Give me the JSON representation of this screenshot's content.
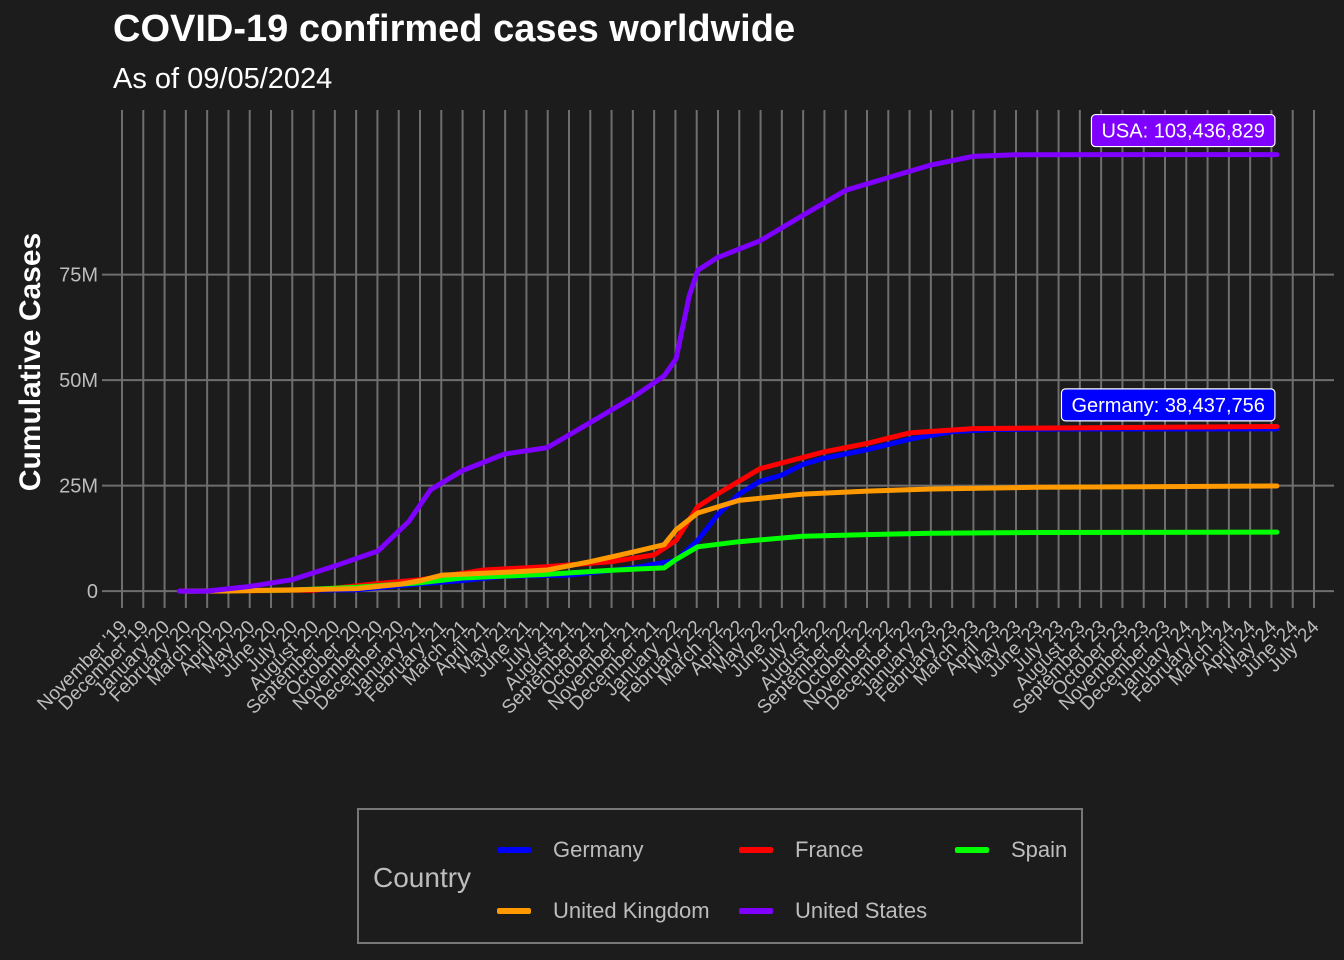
{
  "title": "COVID-19 confirmed cases worldwide",
  "subtitle": "As of 09/05/2024",
  "legend_title": "Country",
  "chart_data": {
    "type": "line",
    "title": "COVID-19 confirmed cases worldwide",
    "subtitle": "As of 09/05/2024",
    "xlabel": "",
    "ylabel": "Cumulative Cases",
    "x_range": [
      "2019-11-01",
      "2024-07-01"
    ],
    "ylim": [
      -4000000,
      114000000
    ],
    "y_ticks": [
      {
        "value": 0,
        "label": "0"
      },
      {
        "value": 25000000,
        "label": "25M"
      },
      {
        "value": 50000000,
        "label": "50M"
      },
      {
        "value": 75000000,
        "label": "75M"
      }
    ],
    "x_tick_labels": [
      "November '19",
      "December '19",
      "January '20",
      "February '20",
      "March '20",
      "April '20",
      "May '20",
      "June '20",
      "July '20",
      "August '20",
      "September '20",
      "October '20",
      "November '20",
      "December '20",
      "January '21",
      "February '21",
      "March '21",
      "April '21",
      "May '21",
      "June '21",
      "July '21",
      "August '21",
      "September '21",
      "October '21",
      "November '21",
      "December '21",
      "January '22",
      "February '22",
      "March '22",
      "April '22",
      "May '22",
      "June '22",
      "July '22",
      "August '22",
      "September '22",
      "October '22",
      "November '22",
      "December '22",
      "January '23",
      "February '23",
      "March '23",
      "April '23",
      "May '23",
      "June '23",
      "July '23",
      "August '23",
      "September '23",
      "October '23",
      "November '23",
      "December '23",
      "January '24",
      "February '24",
      "March '24",
      "April '24",
      "May '24",
      "June '24",
      "July '24"
    ],
    "grid": true,
    "legend_position": "bottom",
    "series": [
      {
        "name": "Germany",
        "color": "#0000ff",
        "points": [
          [
            "2020-01-27",
            0
          ],
          [
            "2020-03-01",
            100
          ],
          [
            "2020-06-01",
            190000
          ],
          [
            "2020-10-01",
            300000
          ],
          [
            "2021-01-01",
            1750000
          ],
          [
            "2021-03-01",
            2500000
          ],
          [
            "2021-05-01",
            3500000
          ],
          [
            "2021-08-01",
            3800000
          ],
          [
            "2021-11-01",
            5500000
          ],
          [
            "2022-01-01",
            7300000
          ],
          [
            "2022-02-01",
            12000000
          ],
          [
            "2022-03-01",
            18000000
          ],
          [
            "2022-04-01",
            23000000
          ],
          [
            "2022-05-01",
            26000000
          ],
          [
            "2022-06-01",
            27500000
          ],
          [
            "2022-07-01",
            30000000
          ],
          [
            "2022-08-01",
            31500000
          ],
          [
            "2022-10-01",
            33500000
          ],
          [
            "2022-12-01",
            36000000
          ],
          [
            "2023-02-01",
            37800000
          ],
          [
            "2023-04-01",
            38300000
          ],
          [
            "2023-07-01",
            38400000
          ],
          [
            "2024-05-09",
            38437756
          ]
        ]
      },
      {
        "name": "France",
        "color": "#ff0000",
        "points": [
          [
            "2020-01-24",
            0
          ],
          [
            "2020-04-01",
            50000
          ],
          [
            "2020-08-01",
            200000
          ],
          [
            "2020-11-01",
            1800000
          ],
          [
            "2021-01-01",
            2700000
          ],
          [
            "2021-04-01",
            5000000
          ],
          [
            "2021-07-01",
            5800000
          ],
          [
            "2021-10-01",
            7000000
          ],
          [
            "2021-12-01",
            8600000
          ],
          [
            "2022-01-01",
            12000000
          ],
          [
            "2022-02-01",
            20000000
          ],
          [
            "2022-03-01",
            23000000
          ],
          [
            "2022-05-01",
            29000000
          ],
          [
            "2022-08-01",
            33000000
          ],
          [
            "2022-10-01",
            35000000
          ],
          [
            "2022-12-01",
            37500000
          ],
          [
            "2023-03-01",
            38500000
          ],
          [
            "2024-05-09",
            38997490
          ]
        ]
      },
      {
        "name": "Spain",
        "color": "#00ff00",
        "points": [
          [
            "2020-02-01",
            0
          ],
          [
            "2020-04-01",
            100000
          ],
          [
            "2020-07-01",
            250000
          ],
          [
            "2020-10-01",
            900000
          ],
          [
            "2021-01-01",
            2000000
          ],
          [
            "2021-03-01",
            3100000
          ],
          [
            "2021-07-01",
            4000000
          ],
          [
            "2021-10-01",
            4950000
          ],
          [
            "2021-12-15",
            5500000
          ],
          [
            "2022-01-01",
            7500000
          ],
          [
            "2022-02-01",
            10500000
          ],
          [
            "2022-04-01",
            11700000
          ],
          [
            "2022-07-01",
            13000000
          ],
          [
            "2022-10-01",
            13400000
          ],
          [
            "2023-01-01",
            13700000
          ],
          [
            "2023-06-01",
            13900000
          ],
          [
            "2024-05-09",
            13980340
          ]
        ]
      },
      {
        "name": "United Kingdom",
        "color": "#ff9900",
        "points": [
          [
            "2020-01-31",
            0
          ],
          [
            "2020-04-01",
            30000
          ],
          [
            "2020-07-01",
            280000
          ],
          [
            "2020-10-01",
            600000
          ],
          [
            "2020-12-01",
            1600000
          ],
          [
            "2021-01-01",
            2500000
          ],
          [
            "2021-02-01",
            3800000
          ],
          [
            "2021-05-01",
            4450000
          ],
          [
            "2021-07-01",
            5000000
          ],
          [
            "2021-09-01",
            7000000
          ],
          [
            "2021-11-01",
            9300000
          ],
          [
            "2021-12-15",
            11000000
          ],
          [
            "2022-01-01",
            14500000
          ],
          [
            "2022-02-01",
            18500000
          ],
          [
            "2022-04-01",
            21500000
          ],
          [
            "2022-07-01",
            23000000
          ],
          [
            "2022-10-01",
            23700000
          ],
          [
            "2023-01-01",
            24200000
          ],
          [
            "2023-06-01",
            24600000
          ],
          [
            "2024-05-09",
            24910387
          ]
        ]
      },
      {
        "name": "United States",
        "color": "#8000ff",
        "points": [
          [
            "2020-01-22",
            0
          ],
          [
            "2020-03-01",
            100
          ],
          [
            "2020-05-01",
            1100000
          ],
          [
            "2020-07-01",
            2700000
          ],
          [
            "2020-09-01",
            6000000
          ],
          [
            "2020-11-01",
            9500000
          ],
          [
            "2020-12-15",
            16500000
          ],
          [
            "2021-01-15",
            24000000
          ],
          [
            "2021-03-01",
            28500000
          ],
          [
            "2021-05-01",
            32500000
          ],
          [
            "2021-07-01",
            34000000
          ],
          [
            "2021-09-01",
            40000000
          ],
          [
            "2021-11-01",
            46000000
          ],
          [
            "2021-12-15",
            51000000
          ],
          [
            "2022-01-01",
            55000000
          ],
          [
            "2022-01-20",
            70000000
          ],
          [
            "2022-02-01",
            76000000
          ],
          [
            "2022-03-01",
            79000000
          ],
          [
            "2022-05-01",
            83000000
          ],
          [
            "2022-07-01",
            89000000
          ],
          [
            "2022-09-01",
            95000000
          ],
          [
            "2022-11-01",
            98000000
          ],
          [
            "2023-01-01",
            101000000
          ],
          [
            "2023-03-01",
            103000000
          ],
          [
            "2023-05-01",
            103400000
          ],
          [
            "2024-05-09",
            103436829
          ]
        ]
      }
    ],
    "annotations": [
      {
        "series": "United States",
        "text": "USA: 103,436,829",
        "color": "#8000ff"
      },
      {
        "series": "Germany",
        "text": "Germany: 38,437,756",
        "color": "#0000ff"
      }
    ]
  },
  "legend_items": [
    {
      "label": "Germany",
      "color": "#0000ff"
    },
    {
      "label": "France",
      "color": "#ff0000"
    },
    {
      "label": "Spain",
      "color": "#00ff00"
    },
    {
      "label": "United Kingdom",
      "color": "#ff9900"
    },
    {
      "label": "United States",
      "color": "#8000ff"
    }
  ]
}
